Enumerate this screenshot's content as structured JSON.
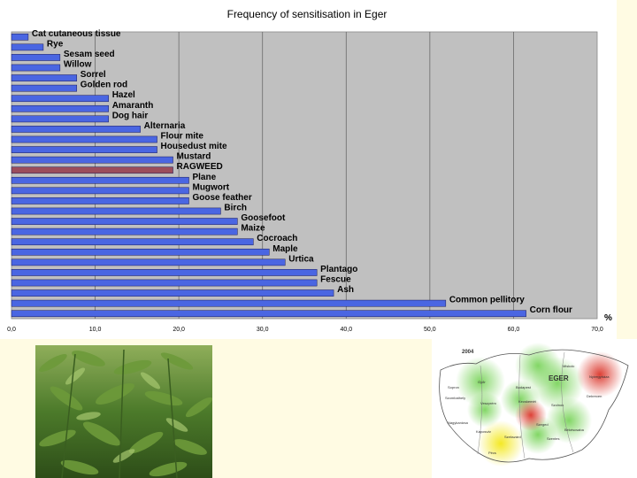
{
  "chart_data": {
    "type": "bar",
    "orientation": "horizontal",
    "title": "Frequency of sensitisation in Eger",
    "xlabel": "%",
    "ylabel": "",
    "xlim": [
      0,
      70
    ],
    "xticks": [
      "0,0",
      "10,0",
      "20,0",
      "30,0",
      "40,0",
      "50,0",
      "60,0",
      "70,0"
    ],
    "grid": "vertical",
    "highlight_color": "#9b4d5c",
    "bar_color": "#4a66e2",
    "categories": [
      "Cat cutaneous tissue",
      "Rye",
      "Sesam seed",
      "Willow",
      "Sorrel",
      "Golden rod",
      "Hazel",
      "Amaranth",
      "Dog hair",
      "Alternaria",
      "Flour mite",
      "Housedust mite",
      "Mustard",
      "RAGWEED",
      "Plane",
      "Mugwort",
      "Goose feather",
      "Birch",
      "Goosefoot",
      "Maize",
      "Cocroach",
      "Maple",
      "Urtica",
      "Plantago",
      "Fescue",
      "Ash",
      "Common pellitory",
      "Corn flour"
    ],
    "values": [
      2.0,
      3.8,
      5.8,
      5.8,
      7.8,
      7.8,
      11.6,
      11.6,
      11.6,
      15.4,
      17.4,
      17.4,
      19.3,
      19.3,
      21.2,
      21.2,
      21.2,
      25.0,
      27.0,
      27.0,
      28.9,
      30.8,
      32.7,
      36.5,
      36.5,
      38.5,
      51.9,
      61.5
    ],
    "highlight": [
      "RAGWEED"
    ]
  },
  "map": {
    "year": "2004",
    "title": "EGER",
    "labels": [
      "Miskolc",
      "Nyíregyháza",
      "Debrecen",
      "Szeged",
      "Pécs",
      "Győr",
      "Budapest",
      "Kecskemét",
      "Szolnok",
      "Veszprém",
      "Sopron",
      "Szombathely",
      "Nagykanizsa",
      "Kaposvár",
      "Békéscsaba",
      "Szentes",
      "Szekszárd"
    ]
  }
}
